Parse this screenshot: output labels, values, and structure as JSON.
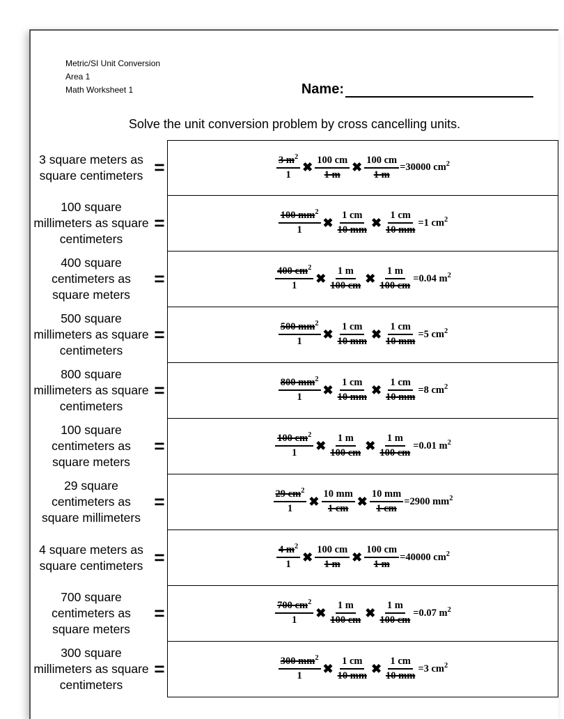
{
  "header": {
    "line1": "Metric/SI Unit Conversion",
    "line2": "Area 1",
    "line3": "Math Worksheet 1",
    "name_label": "Name:"
  },
  "instruction": "Solve the unit conversion problem by cross cancelling units.",
  "problems": [
    {
      "label": "3 square meters as square centimeters",
      "start_num": "3",
      "start_unit": "m",
      "start_denom": "1",
      "conv_top_num": "100",
      "conv_top_unit": "cm",
      "conv_bot_num": "1",
      "conv_bot_unit": "m",
      "answer": "30000",
      "answer_unit": "cm"
    },
    {
      "label": "100 square millimeters as square centimeters",
      "start_num": "100",
      "start_unit": "mm",
      "start_denom": "1",
      "conv_top_num": "1",
      "conv_top_unit": "cm",
      "conv_bot_num": "10",
      "conv_bot_unit": "mm",
      "answer": "1",
      "answer_unit": "cm"
    },
    {
      "label": "400 square centimeters as square meters",
      "start_num": "400",
      "start_unit": "cm",
      "start_denom": "1",
      "conv_top_num": "1",
      "conv_top_unit": "m",
      "conv_bot_num": "100",
      "conv_bot_unit": "cm",
      "answer": "0.04",
      "answer_unit": "m"
    },
    {
      "label": "500 square millimeters as square centimeters",
      "start_num": "500",
      "start_unit": "mm",
      "start_denom": "1",
      "conv_top_num": "1",
      "conv_top_unit": "cm",
      "conv_bot_num": "10",
      "conv_bot_unit": "mm",
      "answer": "5",
      "answer_unit": "cm"
    },
    {
      "label": "800 square millimeters as square centimeters",
      "start_num": "800",
      "start_unit": "mm",
      "start_denom": "1",
      "conv_top_num": "1",
      "conv_top_unit": "cm",
      "conv_bot_num": "10",
      "conv_bot_unit": "mm",
      "answer": "8",
      "answer_unit": "cm"
    },
    {
      "label": "100 square centimeters as square meters",
      "start_num": "100",
      "start_unit": "cm",
      "start_denom": "1",
      "conv_top_num": "1",
      "conv_top_unit": "m",
      "conv_bot_num": "100",
      "conv_bot_unit": "cm",
      "answer": "0.01",
      "answer_unit": "m"
    },
    {
      "label": "29 square centimeters as square millimeters",
      "start_num": "29",
      "start_unit": "cm",
      "start_denom": "1",
      "conv_top_num": "10",
      "conv_top_unit": "mm",
      "conv_bot_num": "1",
      "conv_bot_unit": "cm",
      "answer": "2900",
      "answer_unit": "mm"
    },
    {
      "label": "4 square meters as square centimeters",
      "start_num": "4",
      "start_unit": "m",
      "start_denom": "1",
      "conv_top_num": "100",
      "conv_top_unit": "cm",
      "conv_bot_num": "1",
      "conv_bot_unit": "m",
      "answer": "40000",
      "answer_unit": "cm"
    },
    {
      "label": "700 square centimeters as square meters",
      "start_num": "700",
      "start_unit": "cm",
      "start_denom": "1",
      "conv_top_num": "1",
      "conv_top_unit": "m",
      "conv_bot_num": "100",
      "conv_bot_unit": "cm",
      "answer": "0.07",
      "answer_unit": "m"
    },
    {
      "label": "300 square millimeters as square centimeters",
      "start_num": "300",
      "start_unit": "mm",
      "start_denom": "1",
      "conv_top_num": "1",
      "conv_top_unit": "cm",
      "conv_bot_num": "10",
      "conv_bot_unit": "mm",
      "answer": "3",
      "answer_unit": "cm"
    }
  ]
}
